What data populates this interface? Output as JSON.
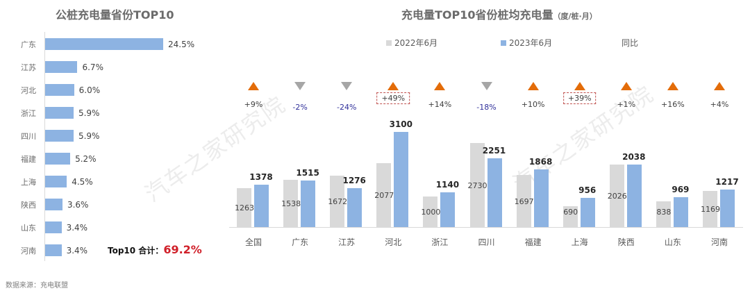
{
  "left_chart": {
    "title": "公桩充电量省份TOP10",
    "total_label": "Top10 合计：",
    "total_value": "69.2%",
    "bar_color": "#8db3e2"
  },
  "right_chart": {
    "title": "充电量TOP10省份桩均充电量",
    "unit": "（度/桩·月）",
    "legend": {
      "series1": "2022年6月",
      "series2": "2023年6月",
      "yoy": "同比"
    },
    "colors": {
      "y2022": "#d9d9d9",
      "y2023": "#8db3e2",
      "up": "#e36c09",
      "down": "#a6a6a6",
      "highlight_border": "#c0504d"
    }
  },
  "source": "数据来源：充电联盟",
  "watermark": "汽车之家研究院",
  "chart_data": [
    {
      "type": "bar",
      "orientation": "horizontal",
      "title": "公桩充电量省份TOP10",
      "categories": [
        "广东",
        "江苏",
        "河北",
        "浙江",
        "四川",
        "福建",
        "上海",
        "陕西",
        "山东",
        "河南"
      ],
      "values": [
        24.5,
        6.7,
        6.0,
        5.9,
        5.9,
        5.2,
        4.5,
        3.6,
        3.4,
        3.4
      ],
      "value_labels": [
        "24.5%",
        "6.7%",
        "6.0%",
        "5.9%",
        "5.9%",
        "5.2%",
        "4.5%",
        "3.6%",
        "3.4%",
        "3.4%"
      ],
      "annotation": "Top10 合计：69.2%",
      "xlabel": "",
      "ylabel": "",
      "grid": false
    },
    {
      "type": "bar",
      "title": "充电量TOP10省份桩均充电量（度/桩·月）",
      "categories": [
        "全国",
        "广东",
        "江苏",
        "河北",
        "浙江",
        "四川",
        "福建",
        "上海",
        "陕西",
        "山东",
        "河南"
      ],
      "series": [
        {
          "name": "2022年6月",
          "values": [
            1263,
            1538,
            1672,
            2077,
            1000,
            2730,
            1697,
            690,
            2026,
            838,
            1169
          ]
        },
        {
          "name": "2023年6月",
          "values": [
            1378,
            1515,
            1276,
            3100,
            1140,
            2251,
            1868,
            956,
            2038,
            969,
            1217
          ]
        }
      ],
      "yoy": {
        "name": "同比",
        "labels": [
          "+9%",
          "-2%",
          "-24%",
          "+49%",
          "+14%",
          "-18%",
          "+10%",
          "+39%",
          "+1%",
          "+16%",
          "+4%"
        ],
        "direction": [
          "up",
          "down",
          "down",
          "up",
          "up",
          "down",
          "up",
          "up",
          "up",
          "up",
          "up"
        ],
        "highlighted": [
          "河北",
          "上海"
        ]
      },
      "xlabel": "",
      "ylabel": "",
      "grid": false,
      "ylim": [
        0,
        3200
      ]
    }
  ]
}
